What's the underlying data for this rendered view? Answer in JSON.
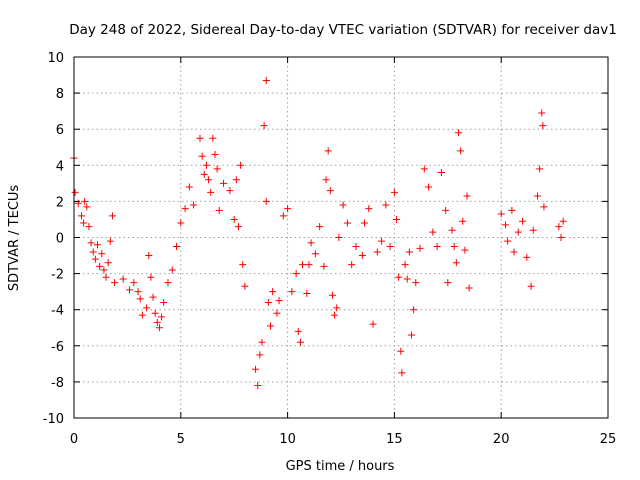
{
  "chart_data": {
    "type": "scatter",
    "title": "Day 248 of 2022, Sidereal Day-to-day VTEC variation (SDTVAR) for receiver dav1",
    "xlabel": "GPS time / hours",
    "ylabel": "SDTVAR / TECUs",
    "xlim": [
      0,
      25
    ],
    "ylim": [
      -10,
      10
    ],
    "xticks": [
      0,
      5,
      10,
      15,
      20,
      25
    ],
    "yticks": [
      -10,
      -8,
      -6,
      -4,
      -2,
      0,
      2,
      4,
      6,
      8,
      10
    ],
    "xtick_labels": [
      "0",
      "5",
      "10",
      "15",
      "20",
      "25"
    ],
    "ytick_labels": [
      "-10",
      "-8",
      "-6",
      "-4",
      "-2",
      "0",
      "2",
      "4",
      "6",
      "8",
      "10"
    ],
    "grid": true,
    "marker": "+",
    "color": "#ff0000",
    "series": [
      {
        "name": "SDTVAR",
        "points": [
          [
            0.0,
            4.4
          ],
          [
            0.05,
            2.5
          ],
          [
            0.2,
            1.9
          ],
          [
            0.35,
            1.2
          ],
          [
            0.45,
            0.8
          ],
          [
            0.5,
            2.0
          ],
          [
            0.6,
            1.7
          ],
          [
            0.7,
            0.6
          ],
          [
            0.8,
            -0.3
          ],
          [
            0.9,
            -0.8
          ],
          [
            1.0,
            -1.2
          ],
          [
            1.1,
            -0.4
          ],
          [
            1.2,
            -1.6
          ],
          [
            1.3,
            -0.9
          ],
          [
            1.4,
            -1.8
          ],
          [
            1.5,
            -2.2
          ],
          [
            1.6,
            -1.4
          ],
          [
            1.7,
            -0.2
          ],
          [
            1.8,
            1.2
          ],
          [
            1.9,
            -2.5
          ],
          [
            2.3,
            -2.3
          ],
          [
            2.6,
            -2.9
          ],
          [
            2.8,
            -2.5
          ],
          [
            3.0,
            -3.0
          ],
          [
            3.1,
            -3.4
          ],
          [
            3.2,
            -4.3
          ],
          [
            3.4,
            -3.9
          ],
          [
            3.5,
            -1.0
          ],
          [
            3.6,
            -2.2
          ],
          [
            3.7,
            -3.3
          ],
          [
            3.8,
            -4.2
          ],
          [
            3.9,
            -4.7
          ],
          [
            4.0,
            -5.0
          ],
          [
            4.1,
            -4.4
          ],
          [
            4.2,
            -3.6
          ],
          [
            4.4,
            -2.5
          ],
          [
            4.6,
            -1.8
          ],
          [
            4.8,
            -0.5
          ],
          [
            5.0,
            0.8
          ],
          [
            5.2,
            1.6
          ],
          [
            5.4,
            2.8
          ],
          [
            5.6,
            1.8
          ],
          [
            5.9,
            5.5
          ],
          [
            6.0,
            4.5
          ],
          [
            6.1,
            3.5
          ],
          [
            6.2,
            4.0
          ],
          [
            6.3,
            3.2
          ],
          [
            6.4,
            2.5
          ],
          [
            6.5,
            5.5
          ],
          [
            6.6,
            4.6
          ],
          [
            6.7,
            3.8
          ],
          [
            6.8,
            1.5
          ],
          [
            7.0,
            3.0
          ],
          [
            7.3,
            2.6
          ],
          [
            7.5,
            1.0
          ],
          [
            7.6,
            3.2
          ],
          [
            7.7,
            0.6
          ],
          [
            7.8,
            4.0
          ],
          [
            7.9,
            -1.5
          ],
          [
            8.0,
            -2.7
          ],
          [
            8.5,
            -7.3
          ],
          [
            8.6,
            -8.2
          ],
          [
            8.7,
            -6.5
          ],
          [
            8.8,
            -5.8
          ],
          [
            8.9,
            6.2
          ],
          [
            9.0,
            8.7
          ],
          [
            9.0,
            2.0
          ],
          [
            9.1,
            -3.6
          ],
          [
            9.2,
            -4.9
          ],
          [
            9.3,
            -3.0
          ],
          [
            9.5,
            -4.2
          ],
          [
            9.6,
            -3.5
          ],
          [
            9.8,
            1.2
          ],
          [
            10.0,
            1.6
          ],
          [
            10.2,
            -3.0
          ],
          [
            10.4,
            -2.0
          ],
          [
            10.5,
            -5.2
          ],
          [
            10.6,
            -5.8
          ],
          [
            10.7,
            -1.5
          ],
          [
            10.9,
            -3.1
          ],
          [
            11.0,
            -1.5
          ],
          [
            11.1,
            -0.3
          ],
          [
            11.3,
            -0.9
          ],
          [
            11.5,
            0.6
          ],
          [
            11.7,
            -1.6
          ],
          [
            11.8,
            3.2
          ],
          [
            11.9,
            4.8
          ],
          [
            12.0,
            2.6
          ],
          [
            12.1,
            -3.2
          ],
          [
            12.2,
            -4.3
          ],
          [
            12.3,
            -3.9
          ],
          [
            12.4,
            0.0
          ],
          [
            12.6,
            1.8
          ],
          [
            12.8,
            0.8
          ],
          [
            13.0,
            -1.5
          ],
          [
            13.2,
            -0.5
          ],
          [
            13.5,
            -1.0
          ],
          [
            13.6,
            0.8
          ],
          [
            13.8,
            1.6
          ],
          [
            14.0,
            -4.8
          ],
          [
            14.2,
            -0.8
          ],
          [
            14.4,
            -0.2
          ],
          [
            14.6,
            1.8
          ],
          [
            14.8,
            -0.5
          ],
          [
            15.0,
            2.5
          ],
          [
            15.1,
            1.0
          ],
          [
            15.2,
            -2.2
          ],
          [
            15.3,
            -6.3
          ],
          [
            15.35,
            -7.5
          ],
          [
            15.5,
            -1.5
          ],
          [
            15.6,
            -2.3
          ],
          [
            15.7,
            -0.8
          ],
          [
            15.8,
            -5.4
          ],
          [
            15.9,
            -4.0
          ],
          [
            16.0,
            -2.5
          ],
          [
            16.2,
            -0.6
          ],
          [
            16.4,
            3.8
          ],
          [
            16.6,
            2.8
          ],
          [
            16.8,
            0.3
          ],
          [
            17.0,
            -0.5
          ],
          [
            17.2,
            3.6
          ],
          [
            17.4,
            1.5
          ],
          [
            17.5,
            -2.5
          ],
          [
            17.7,
            0.4
          ],
          [
            17.8,
            -0.5
          ],
          [
            17.9,
            -1.4
          ],
          [
            18.0,
            5.8
          ],
          [
            18.1,
            4.8
          ],
          [
            18.2,
            0.9
          ],
          [
            18.3,
            -0.7
          ],
          [
            18.4,
            2.3
          ],
          [
            18.5,
            -2.8
          ],
          [
            20.0,
            1.3
          ],
          [
            20.2,
            0.7
          ],
          [
            20.3,
            -0.2
          ],
          [
            20.5,
            1.5
          ],
          [
            20.6,
            -0.8
          ],
          [
            20.8,
            0.3
          ],
          [
            21.0,
            0.9
          ],
          [
            21.2,
            -1.1
          ],
          [
            21.4,
            -2.7
          ],
          [
            21.5,
            0.4
          ],
          [
            21.7,
            2.3
          ],
          [
            21.8,
            3.8
          ],
          [
            21.9,
            6.9
          ],
          [
            21.95,
            6.2
          ],
          [
            22.0,
            1.7
          ],
          [
            22.7,
            0.6
          ],
          [
            22.8,
            0.0
          ],
          [
            22.9,
            0.9
          ]
        ]
      }
    ]
  }
}
